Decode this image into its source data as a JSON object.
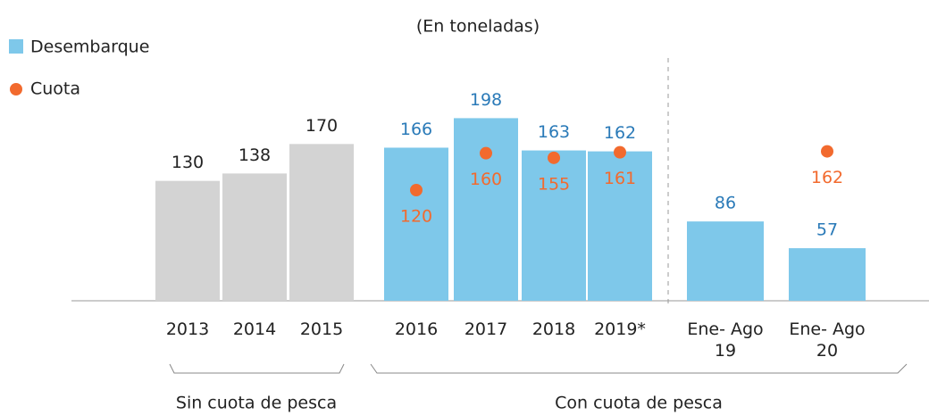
{
  "chart_data": {
    "type": "bar",
    "title": "(En toneladas)",
    "categories": [
      "2013",
      "2014",
      "2015",
      "2016",
      "2017",
      "2018",
      "2019*",
      "Ene- Ago 19",
      "Ene- Ago 20"
    ],
    "groups": [
      "Sin cuota de pesca",
      "Con cuota de pesca"
    ],
    "series": [
      {
        "name": "Desembarque",
        "kind": "bar",
        "color": "#7ec8ea",
        "bar_colors": [
          "#d3d3d3",
          "#d3d3d3",
          "#d3d3d3",
          "#7ec8ea",
          "#7ec8ea",
          "#7ec8ea",
          "#7ec8ea",
          "#7ec8ea",
          "#7ec8ea"
        ],
        "label_colors": [
          "#222222",
          "#222222",
          "#222222",
          "#2a7ab8",
          "#2a7ab8",
          "#2a7ab8",
          "#2a7ab8",
          "#2a7ab8",
          "#2a7ab8"
        ],
        "values": [
          130,
          138,
          170,
          166,
          198,
          163,
          162,
          86,
          57
        ]
      },
      {
        "name": "Cuota",
        "kind": "dot",
        "color": "#f26a2e",
        "values": [
          null,
          null,
          null,
          120,
          160,
          155,
          161,
          null,
          162
        ]
      }
    ],
    "ylim": [
      0,
      210
    ]
  }
}
